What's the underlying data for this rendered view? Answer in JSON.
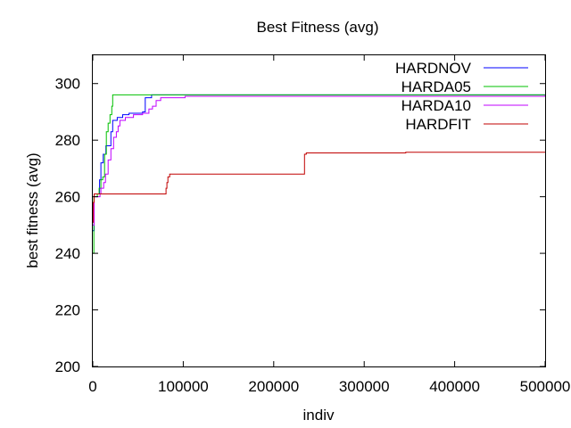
{
  "chart_data": {
    "type": "line",
    "title": "Best Fitness (avg)",
    "xlabel": "indiv",
    "ylabel": "best fitness (avg)",
    "xlim": [
      0,
      500000
    ],
    "ylim": [
      200,
      310
    ],
    "x_ticks": [
      0,
      100000,
      200000,
      300000,
      400000,
      500000
    ],
    "y_ticks": [
      200,
      220,
      240,
      260,
      280,
      300
    ],
    "grid": false,
    "legend_position": "top-right",
    "series": [
      {
        "name": "HARDNOV",
        "color": "#0000ff",
        "step": true,
        "points": [
          [
            0,
            248
          ],
          [
            1500,
            261
          ],
          [
            7000,
            261
          ],
          [
            7500,
            266
          ],
          [
            9000,
            272
          ],
          [
            11000,
            272
          ],
          [
            11500,
            275
          ],
          [
            14500,
            278
          ],
          [
            20000,
            283
          ],
          [
            22000,
            287
          ],
          [
            26000,
            287
          ],
          [
            27000,
            288
          ],
          [
            33000,
            289
          ],
          [
            40000,
            289.5
          ],
          [
            55000,
            290
          ],
          [
            58000,
            295
          ],
          [
            65000,
            296
          ],
          [
            103000,
            296
          ],
          [
            500000,
            296
          ]
        ]
      },
      {
        "name": "HARDA05",
        "color": "#00c000",
        "step": true,
        "points": [
          [
            0,
            240
          ],
          [
            1200,
            260
          ],
          [
            5000,
            261
          ],
          [
            7000,
            263
          ],
          [
            9000,
            266
          ],
          [
            11000,
            267
          ],
          [
            13000,
            275
          ],
          [
            15000,
            283
          ],
          [
            17000,
            286
          ],
          [
            19000,
            289
          ],
          [
            21000,
            292
          ],
          [
            22000,
            296
          ],
          [
            60000,
            296
          ],
          [
            500000,
            296
          ]
        ]
      },
      {
        "name": "HARDA10",
        "color": "#c000ff",
        "step": true,
        "points": [
          [
            0,
            250
          ],
          [
            1500,
            260
          ],
          [
            8000,
            261
          ],
          [
            9000,
            263
          ],
          [
            12000,
            265
          ],
          [
            14000,
            268
          ],
          [
            17000,
            273
          ],
          [
            20000,
            277
          ],
          [
            23000,
            281
          ],
          [
            26000,
            283
          ],
          [
            28000,
            285
          ],
          [
            30000,
            287
          ],
          [
            36000,
            288
          ],
          [
            45000,
            289
          ],
          [
            55000,
            289.5
          ],
          [
            62000,
            291
          ],
          [
            66000,
            292
          ],
          [
            70000,
            294
          ],
          [
            75000,
            295
          ],
          [
            102000,
            295.5
          ],
          [
            500000,
            296
          ]
        ]
      },
      {
        "name": "HARDFIT",
        "color": "#c00000",
        "step": true,
        "points": [
          [
            0,
            251
          ],
          [
            600,
            258
          ],
          [
            1500,
            261
          ],
          [
            80000,
            261
          ],
          [
            81000,
            263
          ],
          [
            82000,
            265
          ],
          [
            83000,
            267
          ],
          [
            85000,
            268
          ],
          [
            90000,
            268
          ],
          [
            100000,
            268
          ],
          [
            233000,
            268
          ],
          [
            234000,
            275
          ],
          [
            236000,
            275.5
          ],
          [
            345000,
            275.5
          ],
          [
            346000,
            275.7
          ],
          [
            500000,
            275.8
          ]
        ]
      }
    ]
  }
}
